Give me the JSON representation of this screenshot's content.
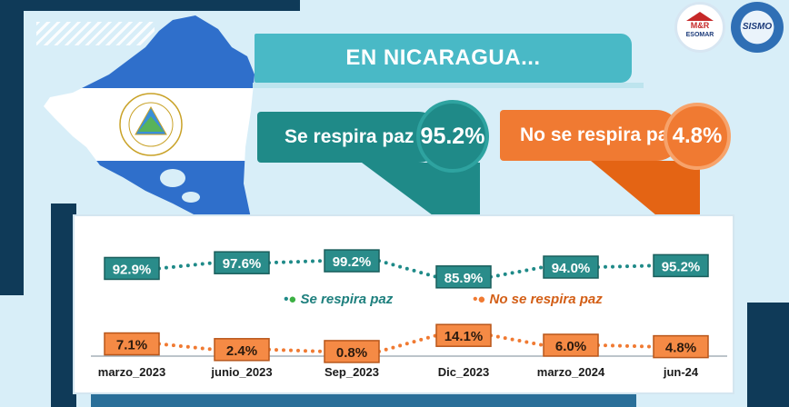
{
  "title": "EN NICARAGUA...",
  "stats": {
    "positive_label": "Se respira paz",
    "positive_value": "95.2%",
    "negative_label": "No se respira paz",
    "negative_value": "4.8%"
  },
  "logos": {
    "mr_text": "M&R",
    "mr_sub": "ESOMAR",
    "sis_text": "SISMO"
  },
  "colors": {
    "teal": "#1f8a88",
    "orange": "#f07a32",
    "title_bg": "#49b9c6",
    "navy": "#0f3a58"
  },
  "chart_data": {
    "type": "line",
    "categories": [
      "marzo_2023",
      "junio_2023",
      "Sep_2023",
      "Dic_2023",
      "marzo_2024",
      "jun-24"
    ],
    "series": [
      {
        "name": "Se respira paz",
        "values": [
          92.9,
          97.6,
          99.2,
          85.9,
          94.0,
          95.2
        ],
        "labels": [
          "92.9%",
          "97.6%",
          "99.2%",
          "85.9%",
          "94.0%",
          "95.2%"
        ],
        "color": "#1f8a88"
      },
      {
        "name": "No se respira paz",
        "values": [
          7.1,
          2.4,
          0.8,
          14.1,
          6.0,
          4.8
        ],
        "labels": [
          "7.1%",
          "2.4%",
          "0.8%",
          "14.1%",
          "6.0%",
          "4.8%"
        ],
        "color": "#f07a32"
      }
    ],
    "legend_position": "middle",
    "grid": false
  }
}
